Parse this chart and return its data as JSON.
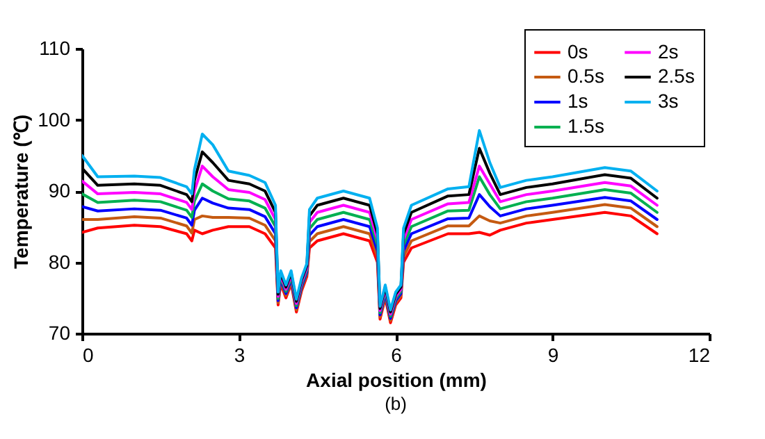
{
  "chart_data": {
    "type": "line",
    "xlabel": "Axial position (mm)",
    "ylabel": "Temperature (℃)",
    "annotations": [
      "(b)"
    ],
    "xlim": [
      0,
      12
    ],
    "xticks": [
      0,
      3,
      6,
      9,
      12
    ],
    "ylim": [
      70,
      110
    ],
    "yticks": [
      70,
      80,
      90,
      100,
      110
    ],
    "grid": false,
    "legend": "top right",
    "marker": "none",
    "line_style": "solid",
    "x": [
      0,
      0.3,
      1,
      1.5,
      2.0,
      2.1,
      2.15,
      2.3,
      2.5,
      2.8,
      3.2,
      3.5,
      3.7,
      3.75,
      3.8,
      3.9,
      4.0,
      4.1,
      4.2,
      4.3,
      4.35,
      4.5,
      5.0,
      5.5,
      5.65,
      5.7,
      5.8,
      5.9,
      6.0,
      6.1,
      6.15,
      6.3,
      7.0,
      7.4,
      7.6,
      7.8,
      8.0,
      8.5,
      9,
      10,
      10.5,
      11
    ],
    "series": [
      {
        "name": "0s",
        "color": "#ff0000",
        "values": [
          84.2,
          84.8,
          85.2,
          85.0,
          84.0,
          83.0,
          84.5,
          84.0,
          84.5,
          85.0,
          85.0,
          84.0,
          82.0,
          74.0,
          77.0,
          75.0,
          77.0,
          73.0,
          76.0,
          78.0,
          82.0,
          83.0,
          84.0,
          83.0,
          80.0,
          72.0,
          75.0,
          71.5,
          74.0,
          75.0,
          80.0,
          82.0,
          84.0,
          84.0,
          84.2,
          83.8,
          84.5,
          85.5,
          86.0,
          87.0,
          86.5,
          84.0
        ]
      },
      {
        "name": "0.5s",
        "color": "#c55a11",
        "values": [
          86.0,
          86.0,
          86.4,
          86.2,
          85.1,
          84.1,
          86.0,
          86.5,
          86.3,
          86.3,
          86.2,
          85.2,
          83.0,
          74.3,
          77.3,
          75.3,
          77.3,
          73.3,
          76.3,
          78.3,
          82.9,
          84.0,
          85.0,
          84.0,
          80.8,
          72.3,
          75.3,
          71.8,
          74.3,
          75.3,
          80.8,
          83.0,
          85.1,
          85.1,
          86.5,
          85.8,
          85.5,
          86.5,
          87.0,
          88.1,
          87.6,
          85.0
        ]
      },
      {
        "name": "1s",
        "color": "#0000ff",
        "values": [
          87.8,
          87.2,
          87.5,
          87.3,
          86.2,
          85.2,
          87.3,
          89.0,
          88.3,
          87.6,
          87.4,
          86.4,
          84.0,
          74.6,
          77.6,
          75.6,
          77.6,
          73.6,
          76.6,
          78.6,
          83.8,
          85.0,
          86.0,
          85.0,
          81.6,
          72.6,
          75.6,
          72.1,
          74.6,
          75.6,
          81.6,
          84.0,
          86.1,
          86.2,
          89.5,
          87.8,
          86.5,
          87.5,
          88.0,
          89.1,
          88.6,
          86.0
        ]
      },
      {
        "name": "1.5s",
        "color": "#00b050",
        "values": [
          89.6,
          88.4,
          88.7,
          88.5,
          87.3,
          86.3,
          88.6,
          91.0,
          90.0,
          88.9,
          88.6,
          87.6,
          85.0,
          74.9,
          77.9,
          75.9,
          77.9,
          73.9,
          76.9,
          78.9,
          84.7,
          86.0,
          87.0,
          86.0,
          82.4,
          72.9,
          75.9,
          72.4,
          74.9,
          75.9,
          82.4,
          85.0,
          87.2,
          87.3,
          92.0,
          89.5,
          87.5,
          88.5,
          89.0,
          90.2,
          89.7,
          87.0
        ]
      },
      {
        "name": "2s",
        "color": "#ff00ff",
        "values": [
          91.4,
          89.6,
          89.8,
          89.6,
          88.4,
          87.4,
          90.0,
          93.5,
          92.0,
          90.2,
          89.8,
          88.8,
          86.0,
          75.2,
          78.2,
          76.2,
          78.2,
          74.2,
          77.2,
          79.2,
          85.6,
          87.0,
          88.0,
          87.0,
          83.2,
          73.2,
          76.2,
          72.7,
          75.2,
          76.2,
          83.2,
          86.0,
          88.2,
          88.4,
          93.5,
          91.0,
          88.5,
          89.5,
          90.0,
          91.2,
          90.7,
          88.0
        ]
      },
      {
        "name": "2.5s",
        "color": "#000000",
        "values": [
          93.2,
          90.8,
          91.0,
          90.8,
          89.5,
          88.5,
          91.5,
          95.5,
          94.0,
          91.5,
          91.0,
          90.0,
          87.0,
          75.5,
          78.5,
          76.5,
          78.5,
          74.5,
          77.5,
          79.5,
          86.5,
          88.0,
          89.0,
          88.0,
          84.0,
          73.5,
          76.5,
          73.0,
          75.5,
          76.5,
          84.0,
          87.0,
          89.3,
          89.5,
          96.0,
          92.5,
          89.5,
          90.5,
          91.0,
          92.3,
          91.8,
          89.0
        ]
      },
      {
        "name": "3s",
        "color": "#00b0f0",
        "values": [
          95.0,
          92.0,
          92.1,
          91.9,
          90.6,
          89.6,
          93.0,
          98.0,
          96.5,
          92.8,
          92.2,
          91.2,
          88.0,
          75.8,
          78.8,
          76.8,
          78.8,
          74.8,
          77.8,
          79.8,
          87.4,
          89.0,
          90.0,
          89.0,
          84.8,
          73.8,
          76.8,
          73.3,
          75.8,
          76.8,
          84.8,
          88.0,
          90.3,
          90.6,
          98.5,
          94.0,
          90.5,
          91.5,
          92.0,
          93.3,
          92.8,
          90.0
        ]
      }
    ]
  }
}
